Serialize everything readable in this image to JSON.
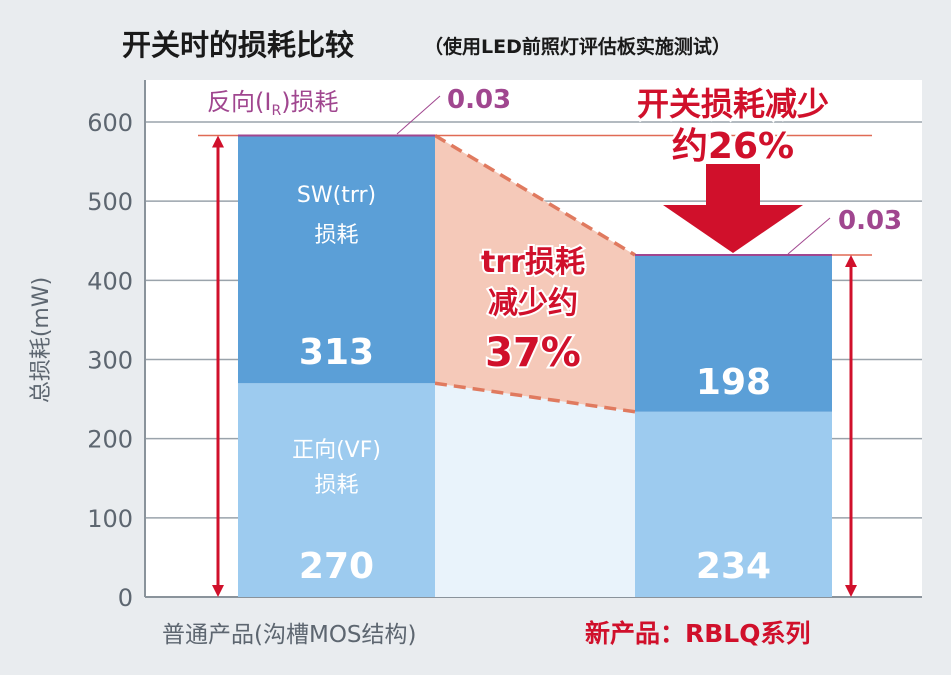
{
  "chart_data": {
    "type": "bar",
    "stacked": true,
    "title": "开关时的损耗比较",
    "subtitle": "（使用LED前照灯评估板实施测试）",
    "ylabel": "总损耗(mW)",
    "xlabel": "",
    "ylim": [
      0,
      650
    ],
    "yticks": [
      0,
      100,
      200,
      300,
      400,
      500,
      600
    ],
    "grid": true,
    "categories": [
      "普通产品(沟槽MOS结构)",
      "新产品：RBLQ系列"
    ],
    "series": [
      {
        "name": "正向(VF)损耗",
        "values": [
          270,
          234
        ],
        "color": "#9dcbef"
      },
      {
        "name": "SW(trr)损耗",
        "values": [
          313,
          198
        ],
        "color": "#5b9fd7"
      },
      {
        "name": "反向(IR)损耗",
        "values": [
          0.03,
          0.03
        ],
        "color": "#a0468f"
      }
    ],
    "bar_labels": {
      "vf_name": "正向(VF)",
      "vf_sub": "F",
      "vf_name2": "损耗",
      "sw_name": "SW(trr)",
      "sw_name2": "损耗",
      "ir_label": "反向(I",
      "ir_sub": "R",
      "ir_label_end": ")损耗",
      "ir_value": "0.03"
    },
    "annotations": {
      "trr_reduction_1": "trr损耗",
      "trr_reduction_2": "减少约",
      "trr_reduction_3": "37%",
      "switch_reduction_1": "开关损耗减少",
      "switch_reduction_2": "约26%"
    },
    "colors": {
      "accent": "#d0102b",
      "purple": "#a0468f",
      "pink": "#f5c9b9",
      "axis": "#5d6670"
    }
  }
}
